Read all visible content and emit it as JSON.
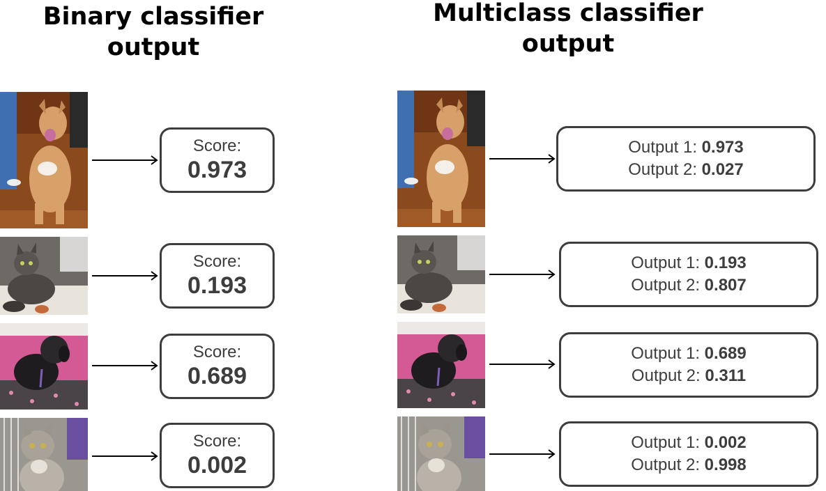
{
  "titles": {
    "binary": "Binary classifier\noutput",
    "multiclass": "Multiclass classifier\noutput"
  },
  "binary": {
    "score_label": "Score:",
    "rows": [
      {
        "animal": "dog",
        "score": "0.973"
      },
      {
        "animal": "cat",
        "score": "0.193"
      },
      {
        "animal": "dog",
        "score": "0.689"
      },
      {
        "animal": "cat",
        "score": "0.002"
      }
    ]
  },
  "multiclass": {
    "output1_label": "Output 1:",
    "output2_label": "Output 2:",
    "rows": [
      {
        "animal": "dog",
        "output1": "0.973",
        "output2": "0.027"
      },
      {
        "animal": "cat",
        "output1": "0.193",
        "output2": "0.807"
      },
      {
        "animal": "dog",
        "output1": "0.689",
        "output2": "0.311"
      },
      {
        "animal": "cat",
        "output1": "0.002",
        "output2": "0.998"
      }
    ]
  },
  "icons": {
    "photo_1": "tan-dog-photo",
    "photo_2": "tabby-kitten-photo",
    "photo_3": "black-dog-photo",
    "photo_4": "grey-cat-photo",
    "arrow": "right-arrow"
  },
  "colors": {
    "box_border": "#3d3d3d",
    "text": "#3d3d3d",
    "title": "#000000"
  }
}
